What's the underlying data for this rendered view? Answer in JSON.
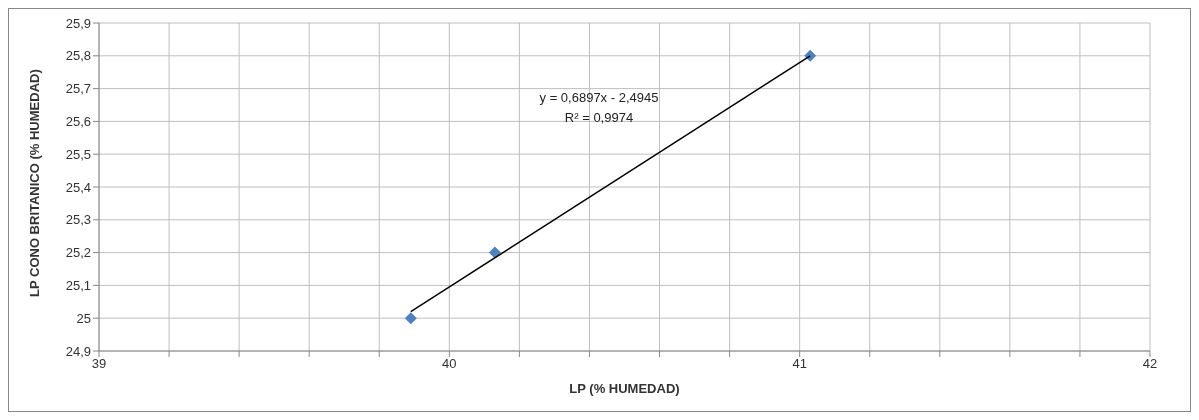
{
  "chart_data": {
    "type": "scatter",
    "xlabel": "LP (% HUMEDAD)",
    "ylabel": "LP CONO BRITANICO (% HUMEDAD)",
    "xlim": [
      39,
      42
    ],
    "xticks": [
      39,
      {
        "value": 39.2,
        "label": null
      },
      {
        "value": 39.4,
        "label": null
      },
      {
        "value": 39.6,
        "label": null
      },
      {
        "value": 39.8,
        "label": null
      },
      40,
      {
        "value": 40.2,
        "label": null
      },
      {
        "value": 40.4,
        "label": null
      },
      {
        "value": 40.6,
        "label": null
      },
      {
        "value": 40.8,
        "label": null
      },
      41,
      {
        "value": 41.2,
        "label": null
      },
      {
        "value": 41.4,
        "label": null
      },
      {
        "value": 41.6,
        "label": null
      },
      {
        "value": 41.8,
        "label": null
      },
      42
    ],
    "ylim": [
      24.9,
      25.9
    ],
    "yticks": [
      {
        "value": 24.9,
        "label": "24,9"
      },
      25,
      {
        "value": 25.1,
        "label": "25,1"
      },
      {
        "value": 25.2,
        "label": "25,2"
      },
      {
        "value": 25.3,
        "label": "25,3"
      },
      {
        "value": 25.4,
        "label": "25,4"
      },
      {
        "value": 25.5,
        "label": "25,5"
      },
      {
        "value": 25.6,
        "label": "25,6"
      },
      {
        "value": 25.7,
        "label": "25,7"
      },
      {
        "value": 25.8,
        "label": "25,8"
      },
      {
        "value": 25.9,
        "label": "25,9"
      }
    ],
    "grid": true,
    "legend": false,
    "series": [
      {
        "marker": "diamond",
        "color": "#4f81bd",
        "x": [
          39.89,
          40.13,
          41.03
        ],
        "values": [
          25.0,
          25.2,
          25.8
        ]
      },
      {
        "type": "line",
        "marker": "none",
        "color": "#000000",
        "x": [
          39.89,
          41.03
        ],
        "values": [
          25.02,
          25.8
        ]
      }
    ],
    "annotations": [
      "y = 0,6897x - 2,4945",
      "R² = 0,9974"
    ]
  }
}
